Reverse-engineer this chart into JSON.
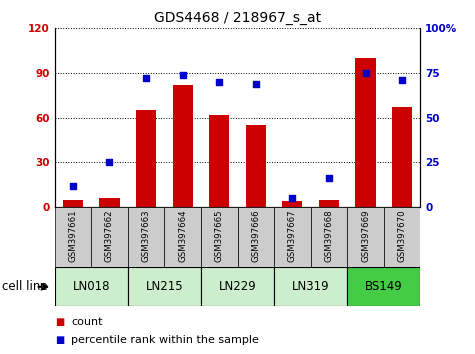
{
  "title": "GDS4468 / 218967_s_at",
  "samples": [
    "GSM397661",
    "GSM397662",
    "GSM397663",
    "GSM397664",
    "GSM397665",
    "GSM397666",
    "GSM397667",
    "GSM397668",
    "GSM397669",
    "GSM397670"
  ],
  "cell_lines": [
    {
      "name": "LN018",
      "samples": [
        0,
        1
      ],
      "color": "#cceecc"
    },
    {
      "name": "LN215",
      "samples": [
        2,
        3
      ],
      "color": "#cceecc"
    },
    {
      "name": "LN229",
      "samples": [
        4,
        5
      ],
      "color": "#cceecc"
    },
    {
      "name": "LN319",
      "samples": [
        6,
        7
      ],
      "color": "#cceecc"
    },
    {
      "name": "BS149",
      "samples": [
        8,
        9
      ],
      "color": "#44cc44"
    }
  ],
  "counts": [
    5,
    6,
    65,
    82,
    62,
    55,
    4,
    5,
    100,
    67
  ],
  "percentile_ranks": [
    12,
    25,
    72,
    74,
    70,
    69,
    5,
    16,
    75,
    71
  ],
  "left_ylim": [
    0,
    120
  ],
  "right_ylim": [
    0,
    100
  ],
  "left_yticks": [
    0,
    30,
    60,
    90,
    120
  ],
  "right_yticks": [
    0,
    25,
    50,
    75,
    100
  ],
  "left_ytick_labels": [
    "0",
    "30",
    "60",
    "90",
    "120"
  ],
  "right_ytick_labels": [
    "0",
    "25",
    "50",
    "75",
    "100%"
  ],
  "bar_color": "#cc0000",
  "dot_color": "#0000cc",
  "bg_color": "#ffffff",
  "label_bg": "#cccccc",
  "cell_line_label": "cell line",
  "legend_count": "count",
  "legend_pct": "percentile rank within the sample",
  "title_fontsize": 10,
  "tick_fontsize": 7.5,
  "legend_fontsize": 8,
  "cell_line_fontsize": 8.5
}
